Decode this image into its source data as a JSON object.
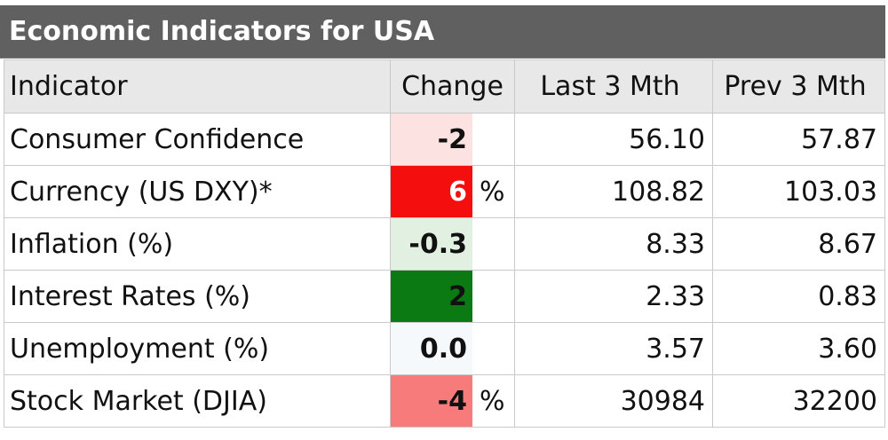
{
  "title": "Economic Indicators for USA",
  "headers": {
    "indicator": "Indicator",
    "change": "Change",
    "last": "Last 3 Mth",
    "prev": "Prev 3 Mth"
  },
  "rows": [
    {
      "indicator": "Consumer Confidence",
      "change": "-2",
      "unit": "",
      "last": "56.10",
      "prev": "57.87",
      "change_bg": "#fde2e2",
      "change_color": "#111111"
    },
    {
      "indicator": "Currency (US DXY)*",
      "change": "6",
      "unit": "%",
      "last": "108.82",
      "prev": "103.03",
      "change_bg": "#f40e0e",
      "change_color": "#ffffff"
    },
    {
      "indicator": "Inflation (%)",
      "change": "-0.3",
      "unit": "",
      "last": "8.33",
      "prev": "8.67",
      "change_bg": "#e2f0e2",
      "change_color": "#111111"
    },
    {
      "indicator": "Interest Rates (%)",
      "change": "2",
      "unit": "",
      "last": "2.33",
      "prev": "0.83",
      "change_bg": "#0b7a12",
      "change_color": "#111111"
    },
    {
      "indicator": "Unemployment (%)",
      "change": "0.0",
      "unit": "",
      "last": "3.57",
      "prev": "3.60",
      "change_bg": "#f6f9fb",
      "change_color": "#111111"
    },
    {
      "indicator": "Stock Market (DJIA)",
      "change": "-4",
      "unit": "%",
      "last": "30984",
      "prev": "32200",
      "change_bg": "#f77b7b",
      "change_color": "#111111"
    }
  ],
  "colors": {
    "title_bg": "#606060",
    "header_bg": "#e8e8e8",
    "grid": "#c9c9c9"
  }
}
